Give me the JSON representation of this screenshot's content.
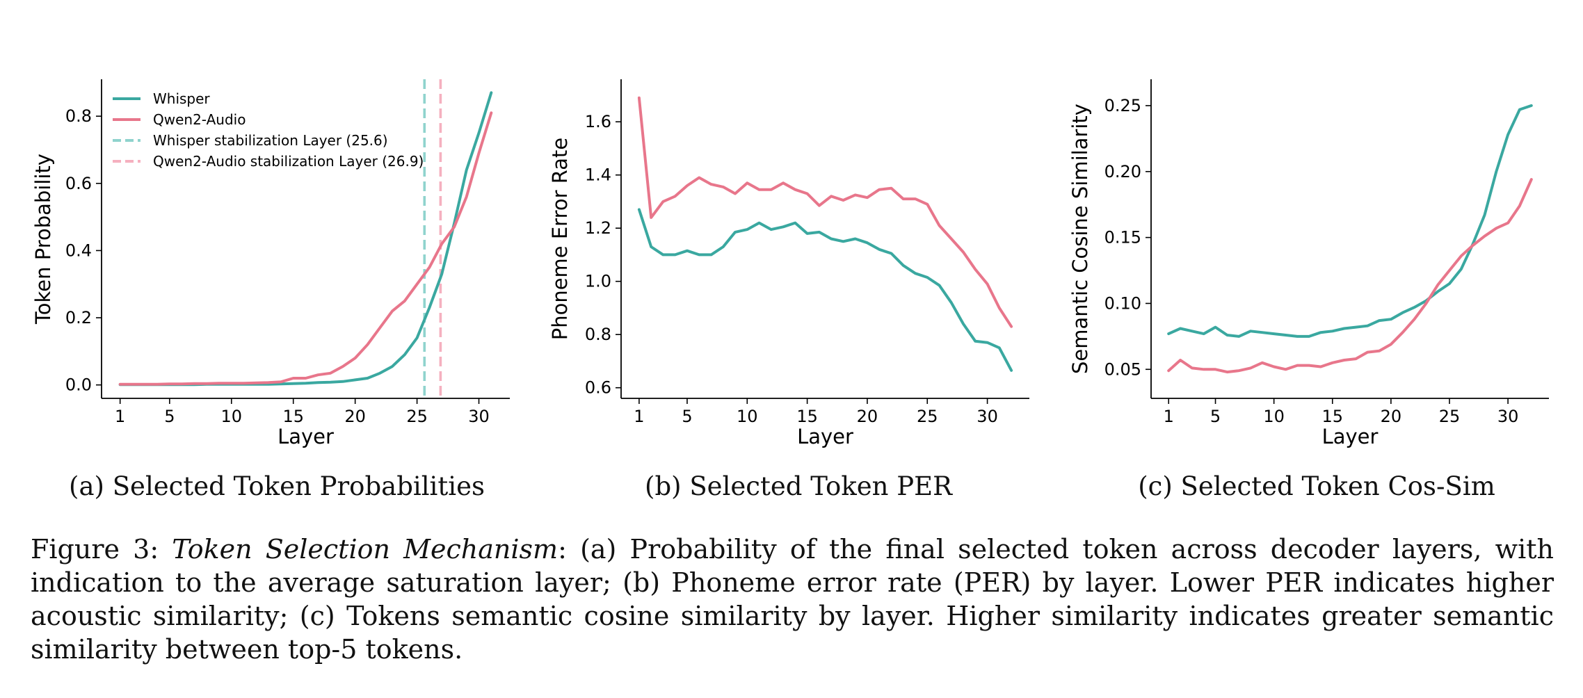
{
  "chart_data": [
    {
      "id": "a",
      "type": "line",
      "xlabel": "Layer",
      "ylabel": "Token Probability",
      "xlim": [
        -0.5,
        32.5
      ],
      "ylim": [
        -0.04,
        0.91
      ],
      "xticks": [
        1,
        5,
        10,
        15,
        20,
        25,
        30
      ],
      "yticks": [
        0.0,
        0.2,
        0.4,
        0.6,
        0.8
      ],
      "ytick_labels": [
        "0.0",
        "0.2",
        "0.4",
        "0.6",
        "0.8"
      ],
      "x": [
        1,
        2,
        3,
        4,
        5,
        6,
        7,
        8,
        9,
        10,
        11,
        12,
        13,
        14,
        15,
        16,
        17,
        18,
        19,
        20,
        21,
        22,
        23,
        24,
        25,
        26,
        27,
        28,
        29,
        30,
        31
      ],
      "series": [
        {
          "name": "Whisper",
          "color": "#3aa8a0",
          "values": [
            0.001,
            0.001,
            0.001,
            0.001,
            0.001,
            0.001,
            0.001,
            0.002,
            0.002,
            0.002,
            0.002,
            0.002,
            0.002,
            0.003,
            0.004,
            0.005,
            0.007,
            0.008,
            0.01,
            0.015,
            0.02,
            0.035,
            0.055,
            0.09,
            0.14,
            0.23,
            0.33,
            0.48,
            0.64,
            0.75,
            0.87
          ]
        },
        {
          "name": "Qwen2-Audio",
          "color": "#e8768b",
          "values": [
            0.002,
            0.002,
            0.002,
            0.002,
            0.003,
            0.003,
            0.004,
            0.004,
            0.005,
            0.005,
            0.005,
            0.006,
            0.007,
            0.009,
            0.02,
            0.02,
            0.03,
            0.035,
            0.055,
            0.08,
            0.12,
            0.17,
            0.22,
            0.25,
            0.3,
            0.35,
            0.42,
            0.47,
            0.56,
            0.69,
            0.81
          ]
        }
      ],
      "vlines": [
        {
          "name": "Whisper stabilization Layer (25.6)",
          "x": 25.6,
          "color": "#8fd3cd"
        },
        {
          "name": "Qwen2-Audio stabilization Layer (26.9)",
          "x": 26.9,
          "color": "#f5b0bf"
        }
      ],
      "legend": "top-left"
    },
    {
      "id": "b",
      "type": "line",
      "xlabel": "Layer",
      "ylabel": "Phoneme Error Rate",
      "xlim": [
        -0.5,
        33.5
      ],
      "ylim": [
        0.56,
        1.76
      ],
      "xticks": [
        1,
        5,
        10,
        15,
        20,
        25,
        30
      ],
      "yticks": [
        0.6,
        0.8,
        1.0,
        1.2,
        1.4,
        1.6
      ],
      "ytick_labels": [
        "0.6",
        "0.8",
        "1.0",
        "1.2",
        "1.4",
        "1.6"
      ],
      "x": [
        1,
        2,
        3,
        4,
        5,
        6,
        7,
        8,
        9,
        10,
        11,
        12,
        13,
        14,
        15,
        16,
        17,
        18,
        19,
        20,
        21,
        22,
        23,
        24,
        25,
        26,
        27,
        28,
        29,
        30,
        31,
        32
      ],
      "series": [
        {
          "name": "Whisper",
          "color": "#3aa8a0",
          "values": [
            1.27,
            1.13,
            1.1,
            1.1,
            1.115,
            1.1,
            1.1,
            1.13,
            1.185,
            1.195,
            1.22,
            1.195,
            1.205,
            1.22,
            1.18,
            1.185,
            1.16,
            1.15,
            1.16,
            1.145,
            1.12,
            1.105,
            1.06,
            1.03,
            1.015,
            0.985,
            0.92,
            0.84,
            0.775,
            0.77,
            0.75,
            0.665
          ]
        },
        {
          "name": "Qwen2-Audio",
          "color": "#e8768b",
          "values": [
            1.69,
            1.24,
            1.3,
            1.32,
            1.36,
            1.39,
            1.365,
            1.355,
            1.33,
            1.37,
            1.345,
            1.345,
            1.37,
            1.345,
            1.33,
            1.285,
            1.32,
            1.305,
            1.325,
            1.315,
            1.345,
            1.35,
            1.31,
            1.31,
            1.29,
            1.21,
            1.16,
            1.11,
            1.045,
            0.99,
            0.9,
            0.83
          ]
        }
      ]
    },
    {
      "id": "c",
      "type": "line",
      "xlabel": "Layer",
      "ylabel": "Semantic Cosine Similarity",
      "xlim": [
        -0.5,
        33.5
      ],
      "ylim": [
        0.028,
        0.27
      ],
      "xticks": [
        1,
        5,
        10,
        15,
        20,
        25,
        30
      ],
      "yticks": [
        0.05,
        0.1,
        0.15,
        0.2,
        0.25
      ],
      "ytick_labels": [
        "0.05",
        "0.10",
        "0.15",
        "0.20",
        "0.25"
      ],
      "x": [
        1,
        2,
        3,
        4,
        5,
        6,
        7,
        8,
        9,
        10,
        11,
        12,
        13,
        14,
        15,
        16,
        17,
        18,
        19,
        20,
        21,
        22,
        23,
        24,
        25,
        26,
        27,
        28,
        29,
        30,
        31,
        32
      ],
      "series": [
        {
          "name": "Whisper",
          "color": "#3aa8a0",
          "values": [
            0.077,
            0.081,
            0.079,
            0.077,
            0.082,
            0.076,
            0.075,
            0.079,
            0.078,
            0.077,
            0.076,
            0.075,
            0.075,
            0.078,
            0.079,
            0.081,
            0.082,
            0.083,
            0.087,
            0.088,
            0.093,
            0.097,
            0.102,
            0.109,
            0.115,
            0.126,
            0.145,
            0.167,
            0.2,
            0.228,
            0.247,
            0.25
          ]
        },
        {
          "name": "Qwen2-Audio",
          "color": "#e8768b",
          "values": [
            0.049,
            0.057,
            0.051,
            0.05,
            0.05,
            0.048,
            0.049,
            0.051,
            0.055,
            0.052,
            0.05,
            0.053,
            0.053,
            0.052,
            0.055,
            0.057,
            0.058,
            0.063,
            0.064,
            0.069,
            0.078,
            0.088,
            0.1,
            0.114,
            0.125,
            0.136,
            0.144,
            0.151,
            0.157,
            0.161,
            0.174,
            0.194
          ]
        }
      ]
    }
  ],
  "subcaptions": {
    "a": "(a) Selected Token Probabilities",
    "b": "(b) Selected Token PER",
    "c": "(c) Selected Token Cos-Sim"
  },
  "caption": {
    "label": "Figure 3: ",
    "italic": "Token Selection Mechanism",
    "body": ": (a) Probability of the final selected token across decoder layers, with indication to the average saturation layer; (b) Phoneme error rate (PER) by layer. Lower PER indicates higher acoustic similarity; (c) Tokens semantic cosine similarity by layer. Higher similarity indicates greater semantic similarity between top-5 tokens."
  }
}
